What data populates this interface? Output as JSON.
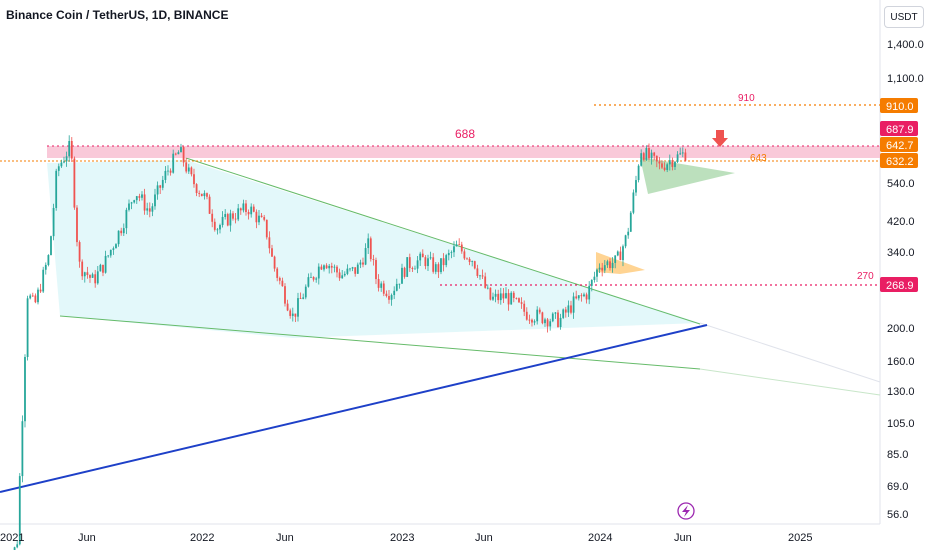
{
  "header": {
    "symbol_title": "Binance Coin / TetherUS, 1D, BINANCE",
    "currency_label": "USDT"
  },
  "colors": {
    "up": "#26a69a",
    "down": "#ef5350",
    "resistance_zone": "#f8bbd0",
    "wedge_fill": "#e0f7fa",
    "wedge_line": "#66bb6a",
    "support_line": "#1e40c8",
    "orange": "#f57c00",
    "pink": "#e91e63",
    "bolt": "#9c27b0"
  },
  "chart_data": {
    "type": "candlestick",
    "symbol": "BNB/USDT",
    "interval": "1D",
    "y_scale": "log",
    "y_ticks": [
      "1,400.0",
      "1,100.0",
      "910.0",
      "687.9",
      "642.7",
      "632.2",
      "540.0",
      "420.0",
      "340.0",
      "268.9",
      "200.0",
      "160.0",
      "130.0",
      "105.0",
      "85.0",
      "69.0",
      "56.0"
    ],
    "x_ticks": [
      "2021",
      "Jun",
      "2022",
      "Jun",
      "2023",
      "Jun",
      "2024",
      "Jun",
      "2025"
    ],
    "price_tags": [
      {
        "value": "910.0",
        "color": "orange"
      },
      {
        "value": "687.9",
        "color": "pink"
      },
      {
        "value": "642.7",
        "color": "orange"
      },
      {
        "value": "632.2",
        "color": "orange"
      },
      {
        "value": "268.9",
        "color": "pink"
      }
    ],
    "annotations": [
      {
        "text": "910",
        "color": "pink"
      },
      {
        "text": "688",
        "color": "pink"
      },
      {
        "text": "643",
        "color": "orange"
      },
      {
        "text": "270",
        "color": "pink"
      }
    ],
    "key_levels": [
      910,
      687.9,
      642.7,
      632.2,
      268.9
    ],
    "price_path": [
      [
        "2021-01-05",
        42
      ],
      [
        "2021-02-01",
        50
      ],
      [
        "2021-02-20",
        250
      ],
      [
        "2021-03-05",
        230
      ],
      [
        "2021-04-01",
        320
      ],
      [
        "2021-04-15",
        550
      ],
      [
        "2021-05-10",
        640
      ],
      [
        "2021-05-25",
        300
      ],
      [
        "2021-06-20",
        270
      ],
      [
        "2021-07-10",
        300
      ],
      [
        "2021-08-10",
        380
      ],
      [
        "2021-09-05",
        480
      ],
      [
        "2021-10-01",
        420
      ],
      [
        "2021-11-01",
        540
      ],
      [
        "2021-11-25",
        620
      ],
      [
        "2021-12-15",
        520
      ],
      [
        "2022-01-10",
        460
      ],
      [
        "2022-02-01",
        380
      ],
      [
        "2022-03-01",
        410
      ],
      [
        "2022-04-01",
        430
      ],
      [
        "2022-05-01",
        380
      ],
      [
        "2022-05-15",
        300
      ],
      [
        "2022-06-20",
        215
      ],
      [
        "2022-07-15",
        260
      ],
      [
        "2022-08-15",
        310
      ],
      [
        "2022-09-15",
        280
      ],
      [
        "2022-10-15",
        290
      ],
      [
        "2022-11-05",
        340
      ],
      [
        "2022-11-20",
        270
      ],
      [
        "2022-12-15",
        250
      ],
      [
        "2023-01-15",
        300
      ],
      [
        "2023-02-15",
        310
      ],
      [
        "2023-03-10",
        290
      ],
      [
        "2023-04-15",
        335
      ],
      [
        "2023-05-15",
        310
      ],
      [
        "2023-06-15",
        240
      ],
      [
        "2023-07-15",
        245
      ],
      [
        "2023-08-20",
        220
      ],
      [
        "2023-10-01",
        212
      ],
      [
        "2023-10-20",
        210
      ],
      [
        "2023-11-15",
        235
      ],
      [
        "2023-12-10",
        250
      ],
      [
        "2024-01-01",
        300
      ],
      [
        "2024-02-01",
        305
      ],
      [
        "2024-02-20",
        360
      ],
      [
        "2024-03-10",
        540
      ],
      [
        "2024-03-15",
        630
      ],
      [
        "2024-04-01",
        590
      ],
      [
        "2024-04-20",
        560
      ],
      [
        "2024-05-10",
        585
      ],
      [
        "2024-06-01",
        605
      ],
      [
        "2024-06-10",
        615
      ]
    ],
    "drawings": [
      {
        "type": "horizontal_zone",
        "from": 643,
        "to": 688,
        "label": "688"
      },
      {
        "type": "descending_wedge"
      },
      {
        "type": "ascending_support_line"
      },
      {
        "type": "bull_flag"
      }
    ]
  }
}
